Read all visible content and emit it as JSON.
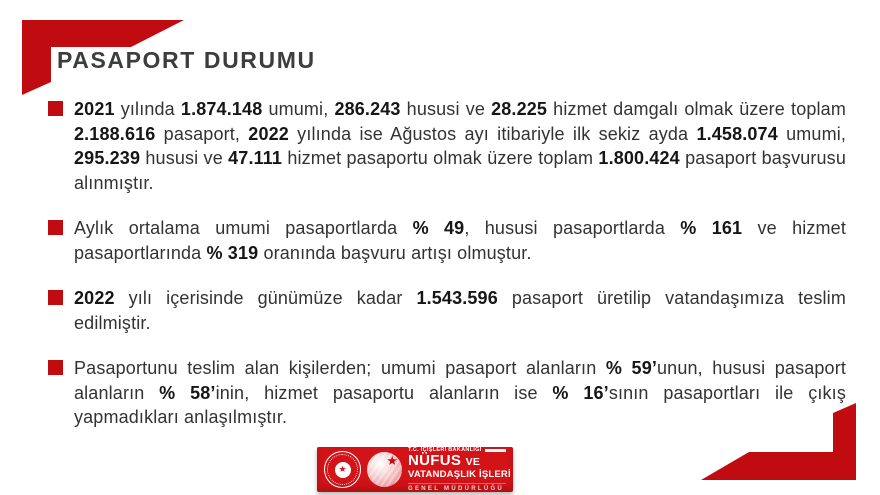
{
  "colors": {
    "accent_red": "#c00b10",
    "banner_red": "#d21419",
    "body_text": "#333333",
    "title_text": "#3d3d3d"
  },
  "header": {
    "title": "PASAPORT DURUMU"
  },
  "bullets": [
    {
      "segments": [
        {
          "t": "2021",
          "b": true
        },
        {
          "t": " yılında "
        },
        {
          "t": "1.874.148",
          "b": true
        },
        {
          "t": " umumi, "
        },
        {
          "t": "286.243",
          "b": true
        },
        {
          "t": " hususi ve "
        },
        {
          "t": "28.225",
          "b": true
        },
        {
          "t": " hizmet damgalı olmak üzere toplam "
        },
        {
          "t": "2.188.616",
          "b": true
        },
        {
          "t": " pasaport, "
        },
        {
          "t": "2022",
          "b": true
        },
        {
          "t": " yılında ise Ağustos ayı itibariyle ilk sekiz ayda "
        },
        {
          "t": "1.458.074",
          "b": true
        },
        {
          "t": " umumi, "
        },
        {
          "t": "295.239",
          "b": true
        },
        {
          "t": " hususi ve "
        },
        {
          "t": "47.111",
          "b": true
        },
        {
          "t": " hizmet pasaportu olmak üzere toplam "
        },
        {
          "t": "1.800.424",
          "b": true
        },
        {
          "t": " pasaport başvurusu alınmıştır."
        }
      ]
    },
    {
      "segments": [
        {
          "t": "Aylık ortalama umumi pasaportlarda "
        },
        {
          "t": "% 49",
          "b": true
        },
        {
          "t": ", hususi pasaportlarda "
        },
        {
          "t": "% 161",
          "b": true
        },
        {
          "t": " ve hizmet pasaportlarında "
        },
        {
          "t": "% 319",
          "b": true
        },
        {
          "t": " oranında başvuru artışı olmuştur."
        }
      ]
    },
    {
      "segments": [
        {
          "t": "2022",
          "b": true
        },
        {
          "t": " yılı içerisinde günümüze kadar "
        },
        {
          "t": "1.543.596",
          "b": true
        },
        {
          "t": " pasaport üretilip vatandaşımıza teslim edilmiştir."
        }
      ]
    },
    {
      "segments": [
        {
          "t": "Pasaportunu teslim alan kişilerden; umumi pasaport alanların "
        },
        {
          "t": "% 59’",
          "b": true
        },
        {
          "t": "unun, hususi pasaport alanların "
        },
        {
          "t": "% 58’",
          "b": true
        },
        {
          "t": "inin, hizmet pasaportu alanların ise "
        },
        {
          "t": "% 16’",
          "b": true
        },
        {
          "t": "sının pasaportları ile çıkış yapmadıkları anlaşılmıştır."
        }
      ]
    }
  ],
  "footer": {
    "ministry": "T.C. İÇİŞLERİ BAKANLIĞI",
    "org_name": "NÜFUS",
    "org_name_suffix": "VE",
    "org_line2": "VATANDAŞLIK İŞLERİ",
    "org_line3": "GENEL MÜDÜRLÜĞÜ"
  }
}
